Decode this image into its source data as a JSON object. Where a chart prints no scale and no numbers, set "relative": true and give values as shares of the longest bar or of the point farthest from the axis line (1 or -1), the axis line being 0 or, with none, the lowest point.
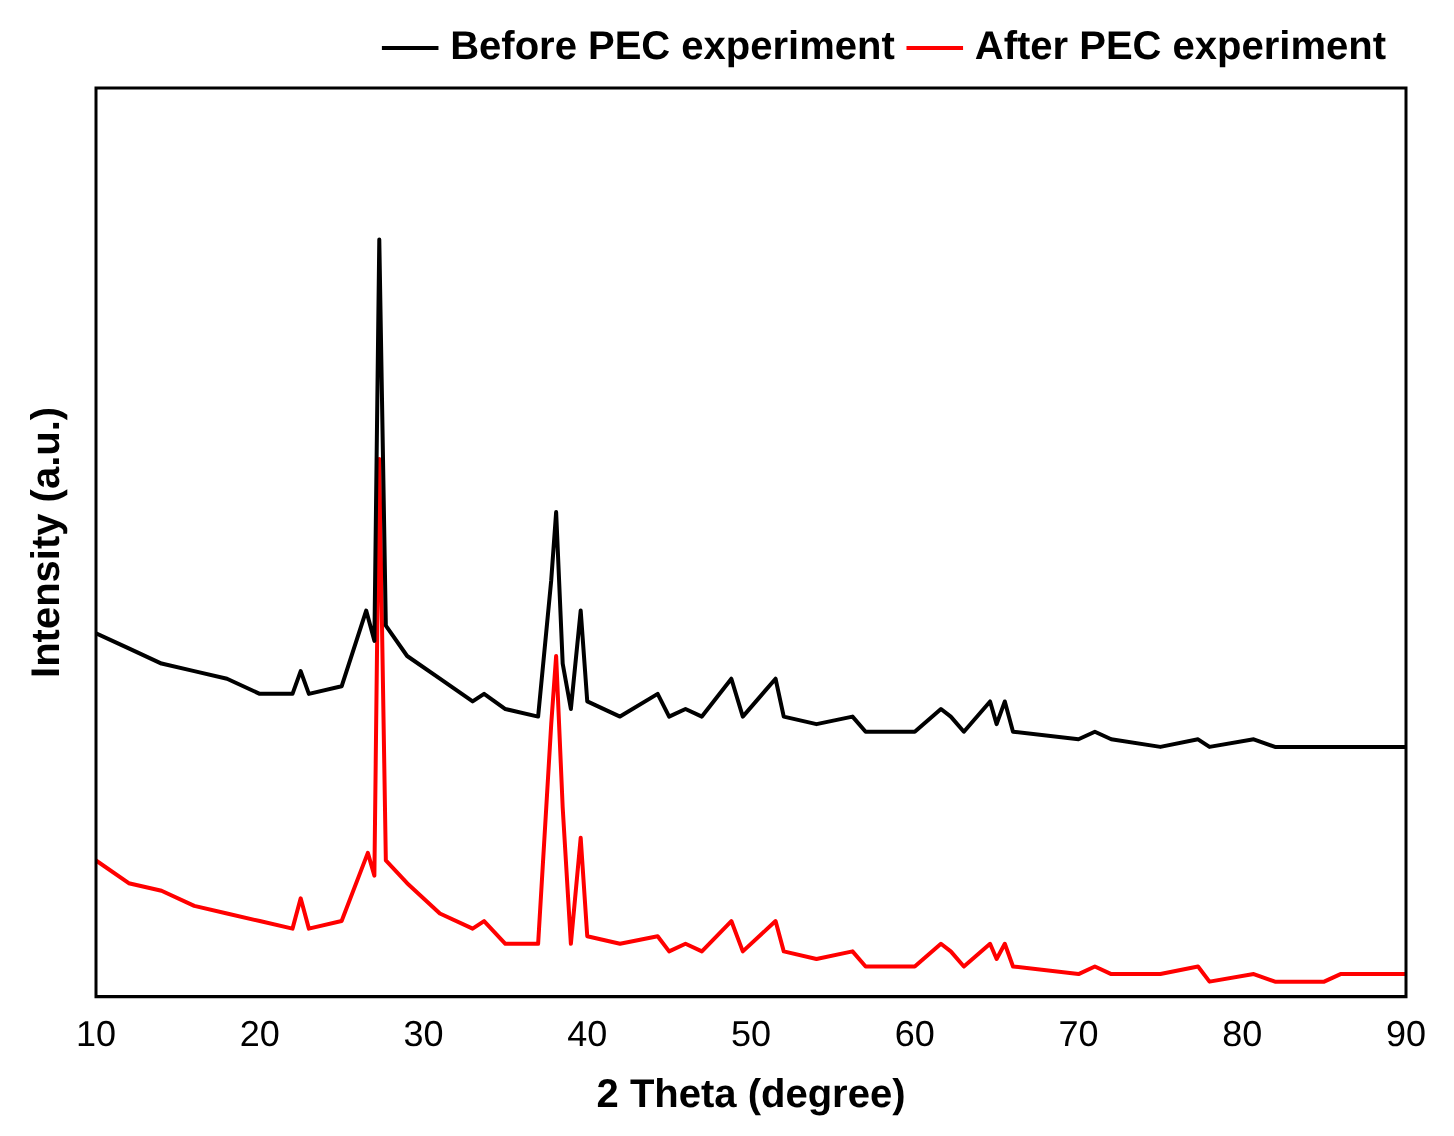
{
  "chart_data": {
    "type": "line",
    "relative": true,
    "xlabel": "2 Theta (degree)",
    "ylabel": "Intensity (a.u.)",
    "xlim": [
      10,
      90
    ],
    "xticks": [
      10,
      20,
      30,
      40,
      50,
      60,
      70,
      80,
      90
    ],
    "legend": "top right",
    "grid": false,
    "marker": "none",
    "series": [
      {
        "name": "Before PEC experiment",
        "color": "#000000",
        "x": [
          10,
          12,
          14,
          16,
          18,
          20,
          22,
          22.5,
          23,
          25,
          26.5,
          27,
          27.3,
          27.7,
          29,
          31,
          33,
          33.7,
          35,
          37,
          37.8,
          38.1,
          38.5,
          39,
          39.6,
          40,
          42,
          44.3,
          45,
          46,
          47,
          48.8,
          49.5,
          51.5,
          52,
          54,
          56.2,
          57,
          60,
          61.6,
          62.2,
          63,
          64.6,
          65,
          65.5,
          66,
          70,
          71,
          72,
          75,
          77.3,
          78,
          80.7,
          82,
          85,
          86,
          90
        ],
        "values": [
          0.48,
          0.46,
          0.44,
          0.43,
          0.42,
          0.4,
          0.4,
          0.43,
          0.4,
          0.41,
          0.51,
          0.47,
          1,
          0.49,
          0.45,
          0.42,
          0.39,
          0.4,
          0.38,
          0.37,
          0.55,
          0.64,
          0.44,
          0.38,
          0.51,
          0.39,
          0.37,
          0.4,
          0.37,
          0.38,
          0.37,
          0.42,
          0.37,
          0.42,
          0.37,
          0.36,
          0.37,
          0.35,
          0.35,
          0.38,
          0.37,
          0.35,
          0.39,
          0.36,
          0.39,
          0.35,
          0.34,
          0.35,
          0.34,
          0.33,
          0.34,
          0.33,
          0.34,
          0.33,
          0.33,
          0.33,
          0.33
        ]
      },
      {
        "name": "After PEC experiment",
        "color": "#ff0000",
        "x": [
          10,
          12,
          14,
          16,
          18,
          20,
          22,
          22.5,
          23,
          25,
          26.6,
          27,
          27.3,
          27.7,
          29,
          31,
          33,
          33.7,
          35,
          37,
          37.8,
          38.1,
          38.5,
          39,
          39.6,
          40,
          42,
          44.3,
          45,
          46,
          47,
          48.8,
          49.5,
          51.5,
          52,
          54,
          56.2,
          57,
          60,
          61.6,
          62.2,
          63,
          64.6,
          65,
          65.5,
          66,
          70,
          71,
          72,
          75,
          77.3,
          78,
          80.7,
          82,
          85,
          86,
          90
        ],
        "values": [
          0.18,
          0.15,
          0.14,
          0.12,
          0.11,
          0.1,
          0.09,
          0.13,
          0.09,
          0.1,
          0.19,
          0.16,
          0.71,
          0.18,
          0.15,
          0.11,
          0.09,
          0.1,
          0.07,
          0.07,
          0.36,
          0.45,
          0.25,
          0.07,
          0.21,
          0.08,
          0.07,
          0.08,
          0.06,
          0.07,
          0.06,
          0.1,
          0.06,
          0.1,
          0.06,
          0.05,
          0.06,
          0.04,
          0.04,
          0.07,
          0.06,
          0.04,
          0.07,
          0.05,
          0.07,
          0.04,
          0.03,
          0.04,
          0.03,
          0.03,
          0.04,
          0.02,
          0.03,
          0.02,
          0.02,
          0.03,
          0.03
        ]
      }
    ]
  }
}
